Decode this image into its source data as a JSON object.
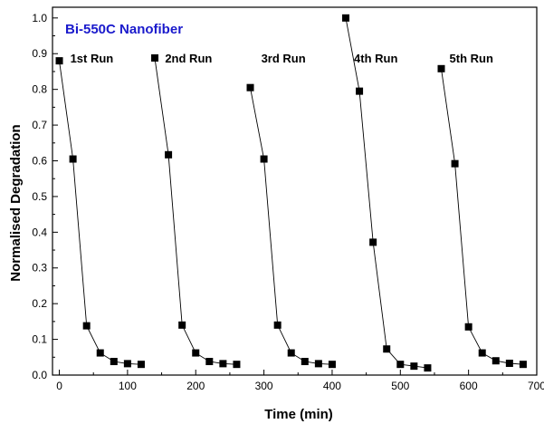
{
  "chart_data": {
    "type": "scatter",
    "title": "Bi-550C Nanofiber",
    "title_color": "#1a1acc",
    "xlabel": "Time (min)",
    "ylabel": "Normalised Degradation",
    "xlim": [
      -10,
      700
    ],
    "ylim": [
      0.0,
      1.03
    ],
    "xticks": [
      0,
      100,
      200,
      300,
      400,
      500,
      600,
      700
    ],
    "yticks": [
      0.0,
      0.1,
      0.2,
      0.3,
      0.4,
      0.5,
      0.6,
      0.7,
      0.8,
      0.9,
      1.0
    ],
    "grid": false,
    "marker": "square",
    "series": [
      {
        "name": "1st Run",
        "x": [
          0,
          20,
          40,
          60,
          80,
          100,
          120
        ],
        "y": [
          0.88,
          0.605,
          0.138,
          0.062,
          0.038,
          0.032,
          0.03
        ]
      },
      {
        "name": "2nd Run",
        "x": [
          140,
          160,
          180,
          200,
          220,
          240,
          260
        ],
        "y": [
          0.888,
          0.617,
          0.14,
          0.062,
          0.038,
          0.032,
          0.03
        ]
      },
      {
        "name": "3rd Run",
        "x": [
          280,
          300,
          320,
          340,
          360,
          380,
          400
        ],
        "y": [
          0.805,
          0.605,
          0.14,
          0.062,
          0.038,
          0.032,
          0.03
        ]
      },
      {
        "name": "4th Run",
        "x": [
          420,
          440,
          460,
          480,
          500,
          520,
          540
        ],
        "y": [
          1.0,
          0.795,
          0.372,
          0.073,
          0.03,
          0.025,
          0.02
        ]
      },
      {
        "name": "5th Run",
        "x": [
          560,
          580,
          600,
          620,
          640,
          660,
          680
        ],
        "y": [
          0.858,
          0.592,
          0.135,
          0.062,
          0.04,
          0.033,
          0.03
        ]
      }
    ],
    "run_label_anchor": [
      {
        "x": 16,
        "y": 0.875
      },
      {
        "x": 155,
        "y": 0.875
      },
      {
        "x": 296,
        "y": 0.875
      },
      {
        "x": 432,
        "y": 0.875
      },
      {
        "x": 572,
        "y": 0.875
      }
    ]
  }
}
